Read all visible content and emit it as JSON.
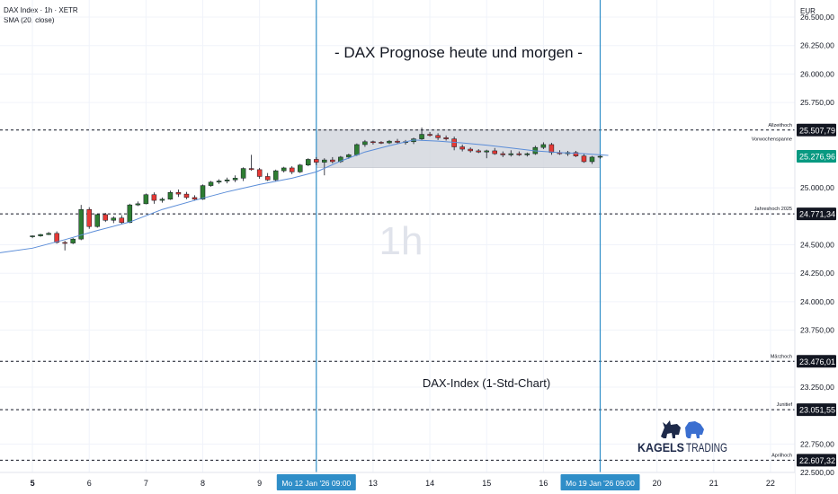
{
  "header": {
    "symbol": "DAX Index · 1h · XETR",
    "indicator": "SMA (20, close)"
  },
  "currency": "EUR",
  "watermark": "1h",
  "chart_data": {
    "type": "candlestick",
    "title": "- DAX Prognose heute und morgen -",
    "subtitle": "DAX-Index (1-Std-Chart)",
    "ylim": [
      22500,
      26650
    ],
    "y_ticks": [
      "26.500,00",
      "26.250,00",
      "26.000,00",
      "25.750,00",
      "25.000,00",
      "24.500,00",
      "24.250,00",
      "24.000,00",
      "23.750,00",
      "23.250,00",
      "22.750,00",
      "22.500,00"
    ],
    "y_tick_values": [
      26500,
      26250,
      26000,
      25750,
      25000,
      24500,
      24250,
      24000,
      23750,
      23250,
      22750,
      22500
    ],
    "x_ticks": [
      {
        "label": "5",
        "t": 0
      },
      {
        "label": "6",
        "t": 7
      },
      {
        "label": "7",
        "t": 14
      },
      {
        "label": "8",
        "t": 21
      },
      {
        "label": "9",
        "t": 28
      },
      {
        "label": "13",
        "t": 42
      },
      {
        "label": "14",
        "t": 49
      },
      {
        "label": "15",
        "t": 56
      },
      {
        "label": "16",
        "t": 63
      },
      {
        "label": "20",
        "t": 77
      },
      {
        "label": "21",
        "t": 84
      },
      {
        "label": "22",
        "t": 91
      }
    ],
    "x_range": [
      -4,
      94
    ],
    "x_highlights": [
      {
        "label": "Mo 12 Jan '26   09:00",
        "t": 35
      },
      {
        "label": "Mo 19 Jan '26   09:00",
        "t": 70
      }
    ],
    "bold_tick": "5",
    "levels": [
      {
        "name": "Allzeithoch",
        "value": 25507.79,
        "label": "25.507,79",
        "color": "#131722"
      },
      {
        "name": "Jahreshoch 2025",
        "value": 24771.34,
        "label": "24.771,34",
        "color": "#131722"
      },
      {
        "name": "Märzhoch",
        "value": 23476.01,
        "label": "23.476,01",
        "color": "#131722"
      },
      {
        "name": "Junitief",
        "value": 23051.55,
        "label": "23.051,55",
        "color": "#131722"
      },
      {
        "name": "Aprilhoch",
        "value": 22607.32,
        "label": "22.607,32",
        "color": "#131722"
      }
    ],
    "current_price": {
      "value": 25276.96,
      "label": "25.276,96",
      "color": "#089981"
    },
    "zone": {
      "name": "Vorwochenspanne",
      "from": 25178,
      "to": 25508
    },
    "sma_color": "#5b8dd8",
    "up_color": "#2e7d32",
    "down_color": "#e53935",
    "candles": [
      [
        24573,
        24582,
        24558,
        24578
      ],
      [
        24578,
        24596,
        24570,
        24590
      ],
      [
        24590,
        24612,
        24585,
        24600
      ],
      [
        24600,
        24618,
        24510,
        24520
      ],
      [
        24520,
        24535,
        24450,
        24515
      ],
      [
        24515,
        24560,
        24505,
        24550
      ],
      [
        24550,
        24850,
        24540,
        24810
      ],
      [
        24810,
        24830,
        24640,
        24660
      ],
      [
        24660,
        24770,
        24650,
        24765
      ],
      [
        24765,
        24780,
        24700,
        24715
      ],
      [
        24715,
        24750,
        24690,
        24735
      ],
      [
        24735,
        24760,
        24680,
        24695
      ],
      [
        24695,
        24860,
        24690,
        24850
      ],
      [
        24850,
        24880,
        24840,
        24860
      ],
      [
        24860,
        24950,
        24855,
        24940
      ],
      [
        24940,
        24960,
        24860,
        24890
      ],
      [
        24890,
        24915,
        24870,
        24900
      ],
      [
        24900,
        24975,
        24895,
        24960
      ],
      [
        24960,
        24985,
        24920,
        24945
      ],
      [
        24945,
        24965,
        24900,
        24915
      ],
      [
        24915,
        24935,
        24890,
        24900
      ],
      [
        24900,
        25030,
        24895,
        25020
      ],
      [
        25020,
        25060,
        25010,
        25050
      ],
      [
        25050,
        25075,
        25035,
        25060
      ],
      [
        25060,
        25090,
        25040,
        25070
      ],
      [
        25070,
        25110,
        25050,
        25085
      ],
      [
        25085,
        25180,
        25060,
        25170
      ],
      [
        25170,
        25290,
        25150,
        25160
      ],
      [
        25160,
        25175,
        25080,
        25100
      ],
      [
        25100,
        25130,
        25060,
        25070
      ],
      [
        25070,
        25160,
        25060,
        25150
      ],
      [
        25150,
        25185,
        25135,
        25175
      ],
      [
        25175,
        25190,
        25120,
        25140
      ],
      [
        25140,
        25210,
        25130,
        25200
      ],
      [
        25200,
        25260,
        25190,
        25250
      ],
      [
        25250,
        25270,
        25200,
        25225
      ],
      [
        25225,
        25260,
        25110,
        25245
      ],
      [
        25245,
        25270,
        25215,
        25230
      ],
      [
        25230,
        25280,
        25220,
        25270
      ],
      [
        25270,
        25300,
        25255,
        25290
      ],
      [
        25290,
        25390,
        25280,
        25380
      ],
      [
        25380,
        25420,
        25360,
        25405
      ],
      [
        25405,
        25415,
        25380,
        25400
      ],
      [
        25400,
        25410,
        25385,
        25395
      ],
      [
        25395,
        25420,
        25385,
        25410
      ],
      [
        25410,
        25430,
        25390,
        25400
      ],
      [
        25400,
        25420,
        25380,
        25405
      ],
      [
        25405,
        25440,
        25385,
        25430
      ],
      [
        25430,
        25530,
        25420,
        25470
      ],
      [
        25470,
        25490,
        25450,
        25460
      ],
      [
        25460,
        25480,
        25420,
        25440
      ],
      [
        25440,
        25460,
        25415,
        25430
      ],
      [
        25430,
        25450,
        25330,
        25360
      ],
      [
        25360,
        25380,
        25320,
        25340
      ],
      [
        25340,
        25355,
        25310,
        25325
      ],
      [
        25325,
        25340,
        25305,
        25315
      ],
      [
        25315,
        25335,
        25260,
        25325
      ],
      [
        25325,
        25350,
        25290,
        25300
      ],
      [
        25300,
        25320,
        25270,
        25290
      ],
      [
        25290,
        25330,
        25275,
        25300
      ],
      [
        25300,
        25320,
        25280,
        25290
      ],
      [
        25290,
        25310,
        25275,
        25300
      ],
      [
        25300,
        25370,
        25290,
        25355
      ],
      [
        25355,
        25400,
        25340,
        25380
      ],
      [
        25380,
        25395,
        25290,
        25310
      ],
      [
        25310,
        25330,
        25290,
        25300
      ],
      [
        25300,
        25325,
        25280,
        25310
      ],
      [
        25310,
        25325,
        25270,
        25280
      ],
      [
        25280,
        25300,
        25220,
        25230
      ],
      [
        25230,
        25280,
        25210,
        25270
      ],
      [
        25270,
        25285,
        25255,
        25277
      ]
    ],
    "sma": [
      [
        -4,
        24430
      ],
      [
        0,
        24470
      ],
      [
        4,
        24545
      ],
      [
        8,
        24625
      ],
      [
        12,
        24700
      ],
      [
        16,
        24810
      ],
      [
        20,
        24890
      ],
      [
        24,
        24965
      ],
      [
        28,
        25030
      ],
      [
        32,
        25085
      ],
      [
        35,
        25140
      ],
      [
        38,
        25235
      ],
      [
        41,
        25315
      ],
      [
        44,
        25370
      ],
      [
        47,
        25420
      ],
      [
        50,
        25410
      ],
      [
        53,
        25395
      ],
      [
        56,
        25375
      ],
      [
        59,
        25350
      ],
      [
        62,
        25325
      ],
      [
        65,
        25310
      ],
      [
        68,
        25300
      ],
      [
        71,
        25285
      ]
    ],
    "brand": {
      "left": "KAGELS",
      "right": "TRADING"
    }
  }
}
